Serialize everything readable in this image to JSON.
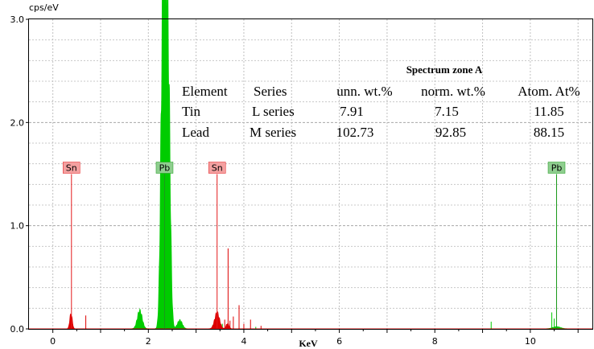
{
  "chart_data": {
    "type": "line",
    "title": "",
    "ylabel": "cps/eV",
    "xlabel": "KeV",
    "xlim": [
      -0.5,
      11.3
    ],
    "ylim": [
      0,
      3.0
    ],
    "x_ticks": [
      0,
      2,
      4,
      6,
      8,
      10
    ],
    "y_ticks": [
      {
        "value": 0.0,
        "label": "0.0"
      },
      {
        "value": 1.0,
        "label": "1.0"
      },
      {
        "value": 2.0,
        "label": "2.0"
      },
      {
        "value": 3.0,
        "label": "3.0"
      }
    ],
    "grid": true,
    "series": [
      {
        "color": "#00cc00",
        "peaks": [
          {
            "center": 1.82,
            "height": 0.17,
            "width": 0.05
          },
          {
            "center": 2.3,
            "height": 2.25,
            "width": 0.04
          },
          {
            "center": 2.36,
            "height": 2.0,
            "width": 0.05
          },
          {
            "center": 2.42,
            "height": 1.75,
            "width": 0.04
          },
          {
            "center": 2.66,
            "height": 0.08,
            "width": 0.05
          },
          {
            "center": 10.55,
            "height": 0.02,
            "width": 0.08
          }
        ],
        "spikes": [
          {
            "x": 3.35,
            "y": 0.04
          },
          {
            "x": 3.55,
            "y": 0.05
          },
          {
            "x": 3.9,
            "y": 0.03
          },
          {
            "x": 4.25,
            "y": 0.02
          },
          {
            "x": 9.18,
            "y": 0.07
          },
          {
            "x": 10.45,
            "y": 0.16
          },
          {
            "x": 10.5,
            "y": 0.1
          }
        ]
      },
      {
        "color": "#dd0000",
        "peaks": [
          {
            "center": 0.38,
            "height": 0.14,
            "width": 0.025
          },
          {
            "center": 3.44,
            "height": 0.15,
            "width": 0.05
          },
          {
            "center": 3.66,
            "height": 0.05,
            "width": 0.03
          }
        ],
        "spikes": [
          {
            "x": 0.69,
            "y": 0.13
          },
          {
            "x": 3.6,
            "y": 0.09
          },
          {
            "x": 3.67,
            "y": 0.78
          },
          {
            "x": 3.71,
            "y": 0.08
          },
          {
            "x": 3.78,
            "y": 0.12
          },
          {
            "x": 3.9,
            "y": 0.23
          },
          {
            "x": 4.0,
            "y": 0.05
          },
          {
            "x": 4.14,
            "y": 0.09
          },
          {
            "x": 4.36,
            "y": 0.03
          }
        ]
      }
    ],
    "element_markers": [
      {
        "label": "Sn",
        "x": 0.39,
        "y": 1.5,
        "color": "#e41a1c",
        "box": "#f4a0a0"
      },
      {
        "label": "Pb",
        "x": 2.34,
        "y": 1.5,
        "color": "#1a9a1a",
        "box": "#8fce8f"
      },
      {
        "label": "Sn",
        "x": 3.44,
        "y": 1.5,
        "color": "#e41a1c",
        "box": "#f4a0a0"
      },
      {
        "label": "Pb",
        "x": 10.55,
        "y": 1.5,
        "color": "#1a9a1a",
        "box": "#8fce8f"
      }
    ],
    "table": {
      "title": "Spectrum zone A",
      "headers": [
        "Element",
        "Series",
        "unn. wt.%",
        "norm. wt.%",
        "Atom. At%"
      ],
      "rows": [
        [
          "Tin",
          "L series",
          "7.91",
          "7.15",
          "11.85"
        ],
        [
          "Lead",
          "M series",
          "102.73",
          "92.85",
          "88.15"
        ]
      ]
    }
  }
}
